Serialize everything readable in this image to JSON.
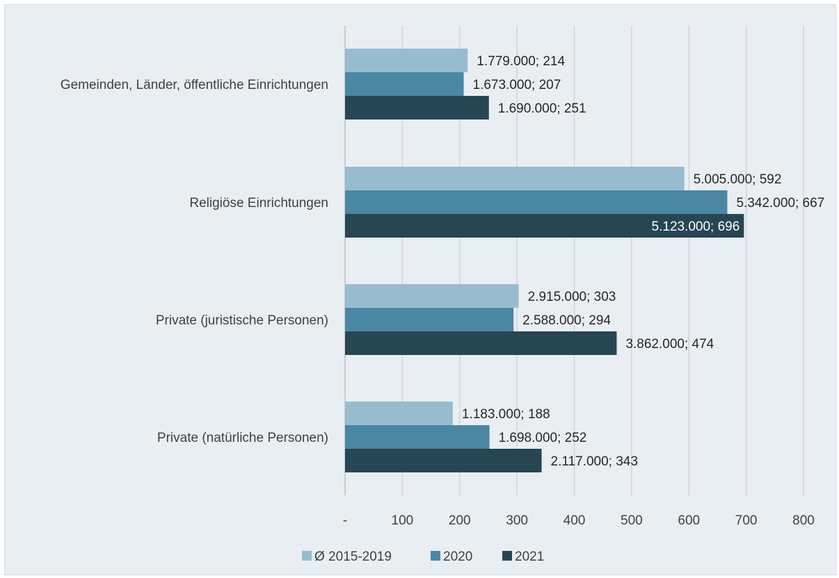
{
  "chart_data": {
    "type": "bar",
    "orientation": "horizontal",
    "title": "",
    "xlabel": "",
    "ylabel": "",
    "categories": [
      "Gemeinden, Länder, öffentliche Einrichtungen",
      "Religiöse Einrichtungen",
      "Private (juristische Personen)",
      "Private (natürliche Personen)"
    ],
    "series": [
      {
        "name": "Ø 2015-2019",
        "color": "#98bccf",
        "values": [
          214,
          592,
          303,
          188
        ],
        "labels": [
          "1.779.000; 214",
          "5.005.000; 592",
          "2.915.000; 303",
          "1.183.000; 188"
        ]
      },
      {
        "name": "2020",
        "color": "#4a87a3",
        "values": [
          207,
          667,
          294,
          252
        ],
        "labels": [
          "1.673.000; 207",
          "5.342.000; 667",
          "2.588.000; 294",
          "1.698.000; 252"
        ]
      },
      {
        "name": "2021",
        "color": "#264653",
        "values": [
          251,
          696,
          474,
          343
        ],
        "labels": [
          "1.690.000; 251",
          "5.123.000; 696",
          "3.862.000; 474",
          "2.117.000; 343"
        ]
      }
    ],
    "xlim": [
      0,
      800
    ],
    "xticks": [
      0,
      100,
      200,
      300,
      400,
      500,
      600,
      700,
      800
    ],
    "xtick_labels": [
      "-",
      "100",
      "200",
      "300",
      "400",
      "500",
      "600",
      "700",
      "800"
    ],
    "grid": "vertical",
    "legend": "bottom"
  }
}
